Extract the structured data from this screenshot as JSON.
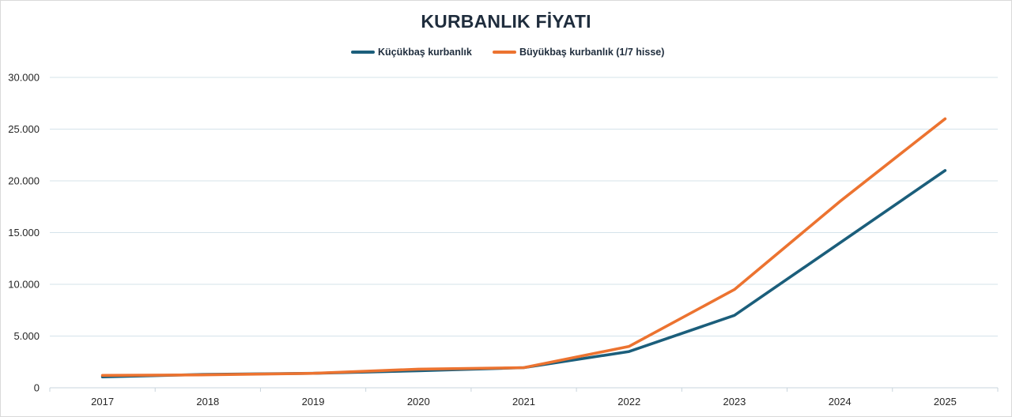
{
  "chart_data": {
    "type": "line",
    "title": "KURBANLIK FİYATI",
    "xlabel": "",
    "ylabel": "",
    "categories": [
      "2017",
      "2018",
      "2019",
      "2020",
      "2021",
      "2022",
      "2023",
      "2024",
      "2025"
    ],
    "series": [
      {
        "name": "Küçükbaş kurbanlık",
        "color": "#1b5e7b",
        "values": [
          1050,
          1300,
          1400,
          1650,
          1950,
          3500,
          7000,
          14000,
          21000
        ]
      },
      {
        "name": "Büyükbaş kurbanlık  (1/7 hisse)",
        "color": "#ec7330",
        "values": [
          1200,
          1250,
          1400,
          1800,
          1950,
          4000,
          9500,
          18000,
          26000
        ]
      }
    ],
    "ylim": [
      0,
      30000
    ],
    "yticks": [
      0,
      5000,
      10000,
      15000,
      20000,
      25000,
      30000
    ],
    "ytick_labels": [
      "0",
      "5.000",
      "10.000",
      "15.000",
      "20.000",
      "25.000",
      "30.000"
    ],
    "grid": true,
    "legend_position": "top-center"
  }
}
